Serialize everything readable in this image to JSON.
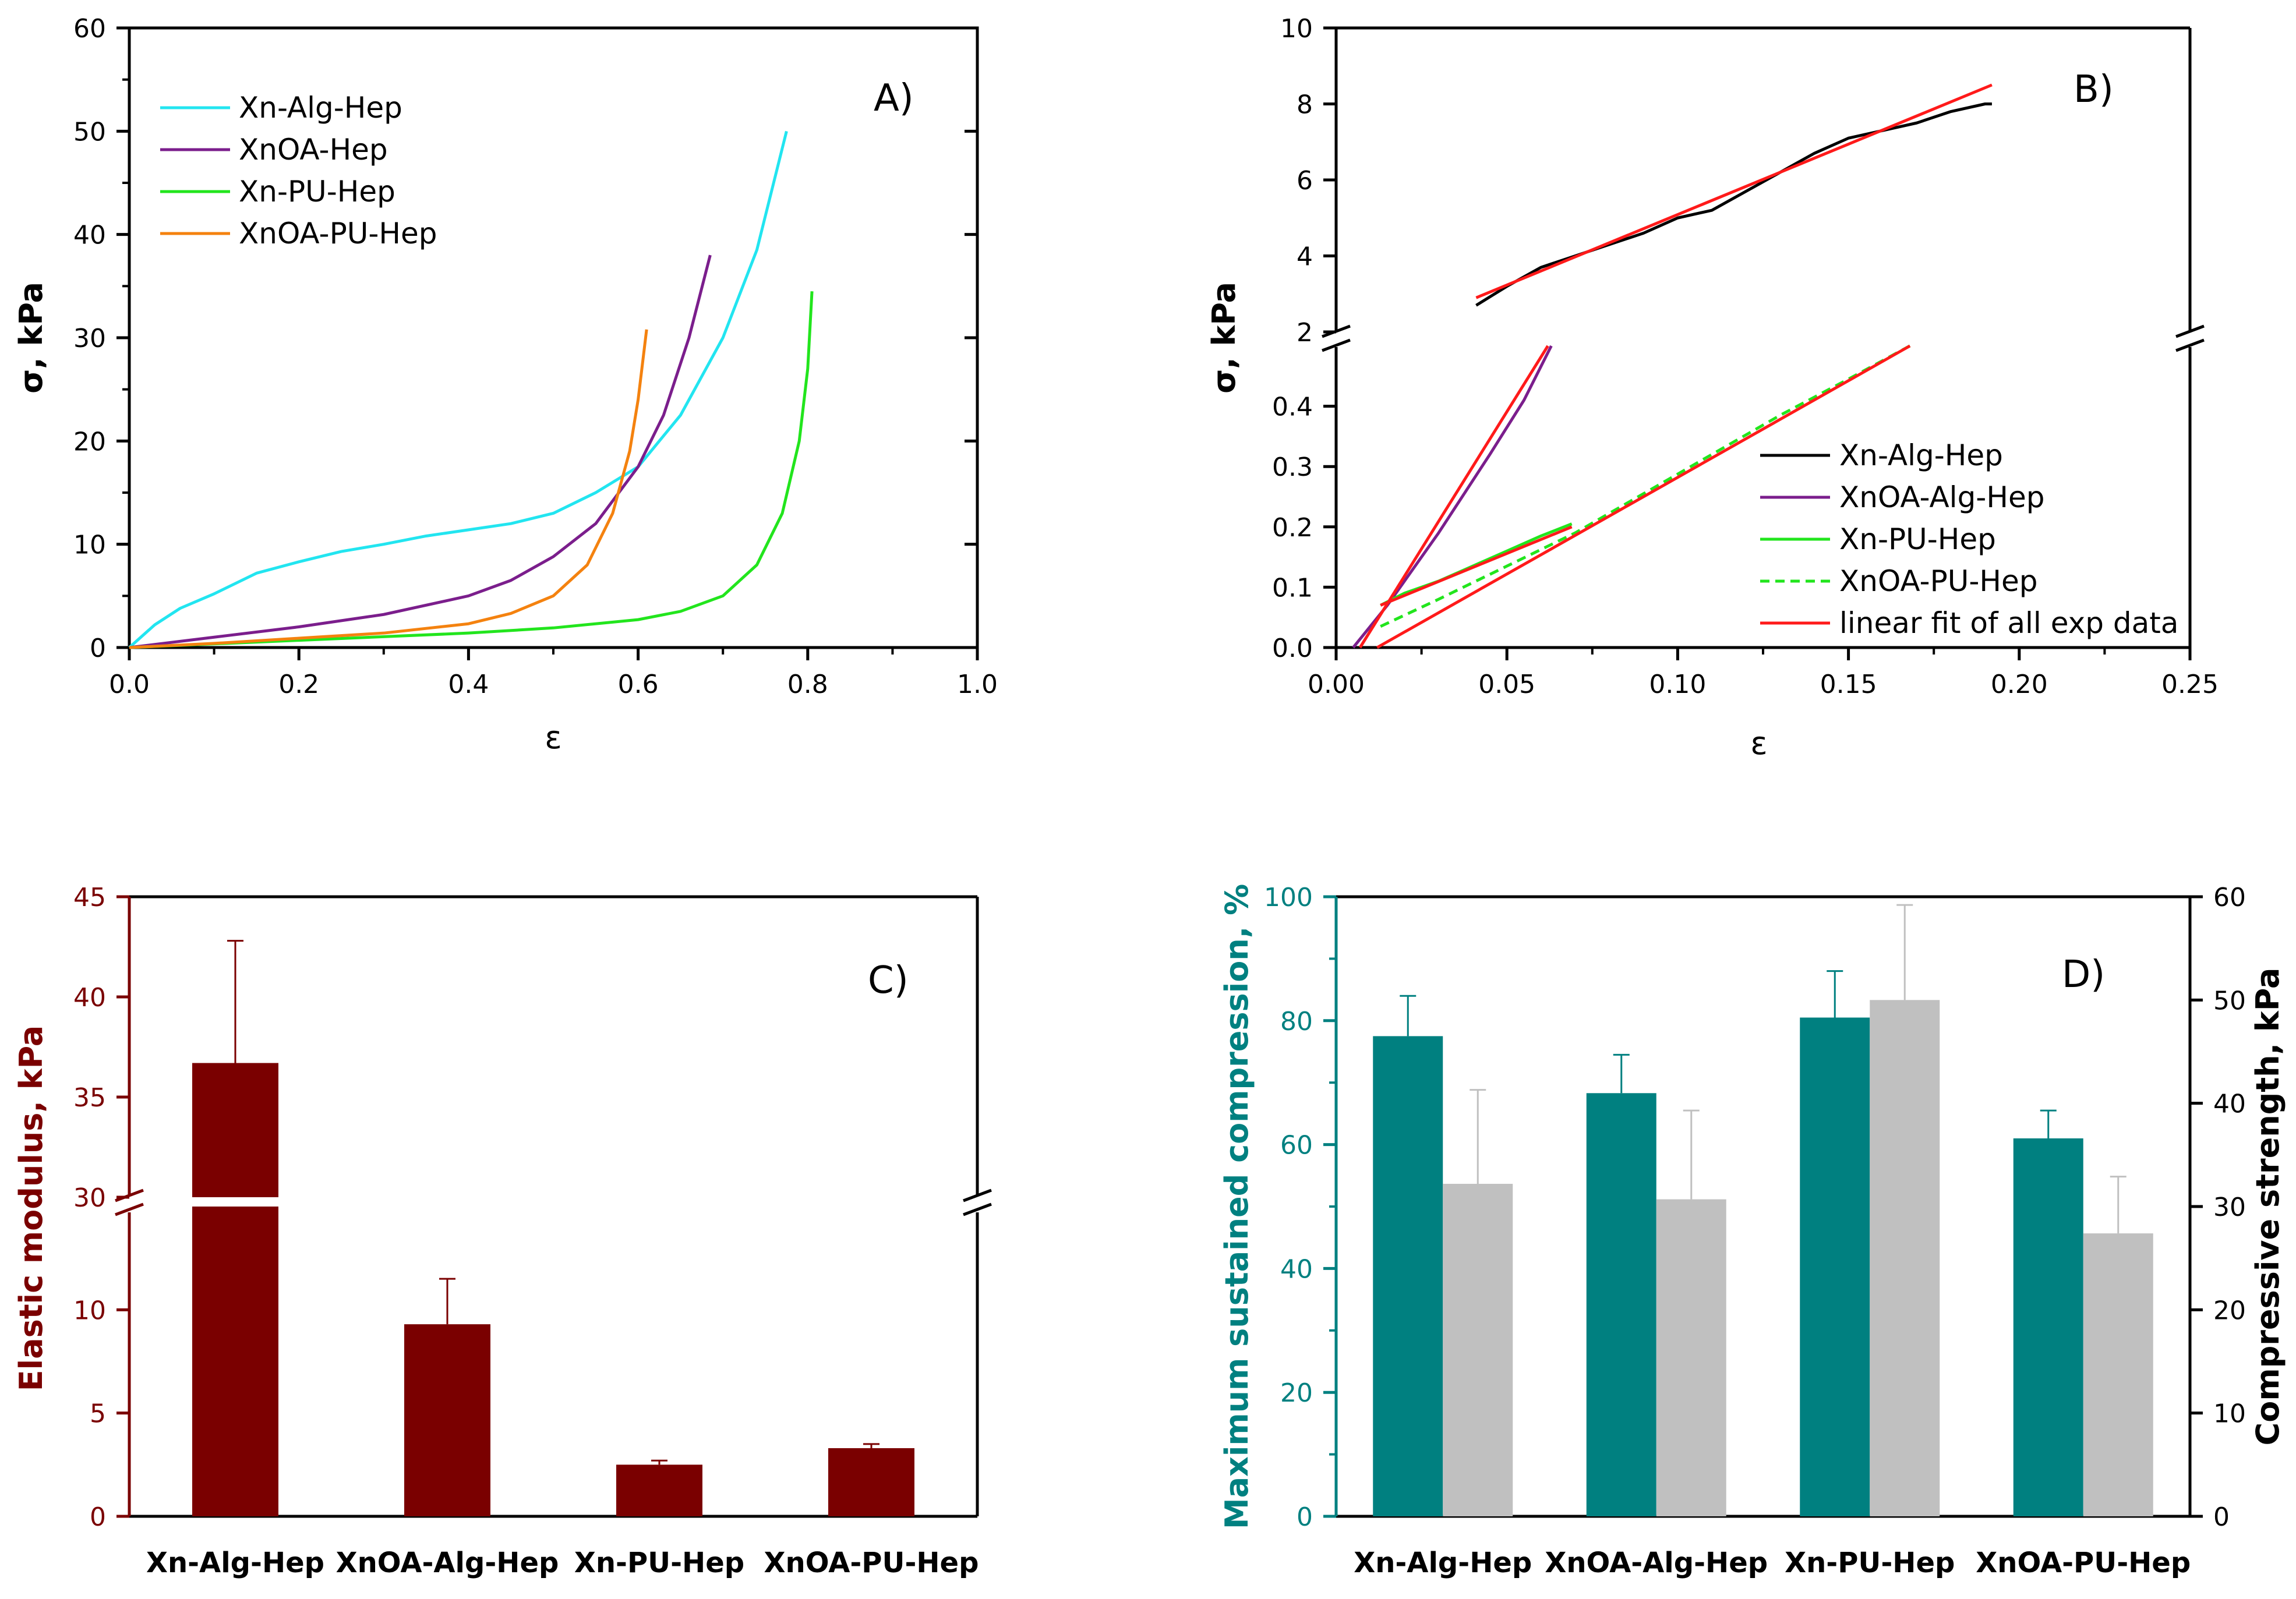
{
  "chart_data": [
    {
      "panel": "A)",
      "type": "line",
      "xlabel": "ε",
      "ylabel": "σ, kPa",
      "xlim": [
        0.0,
        1.0
      ],
      "ylim": [
        0,
        60
      ],
      "xticks": [
        "0.0",
        "0.2",
        "0.4",
        "0.6",
        "0.8",
        "1.0"
      ],
      "yticks": [
        "0",
        "10",
        "20",
        "30",
        "40",
        "50",
        "60"
      ],
      "legend_position": "top-left",
      "series": [
        {
          "name": "Xn-Alg-Hep",
          "color": "#22e5f0",
          "x": [
            0,
            0.03,
            0.06,
            0.1,
            0.15,
            0.2,
            0.25,
            0.3,
            0.35,
            0.4,
            0.45,
            0.5,
            0.55,
            0.6,
            0.65,
            0.7,
            0.74,
            0.775
          ],
          "y": [
            0,
            2.2,
            3.8,
            5.2,
            7.2,
            8.3,
            9.3,
            10.0,
            10.8,
            11.4,
            12.0,
            13.0,
            15.0,
            17.5,
            22.5,
            30.0,
            38.5,
            50.0
          ]
        },
        {
          "name": "XnOA-Hep",
          "color": "#7b1e8c",
          "x": [
            0,
            0.1,
            0.2,
            0.3,
            0.4,
            0.45,
            0.5,
            0.55,
            0.6,
            0.63,
            0.66,
            0.685
          ],
          "y": [
            0,
            1.0,
            2.0,
            3.2,
            5.0,
            6.5,
            8.8,
            12.0,
            17.5,
            22.5,
            30.0,
            38.0
          ]
        },
        {
          "name": "Xn-PU-Hep",
          "color": "#22e51d",
          "x": [
            0,
            0.2,
            0.4,
            0.5,
            0.6,
            0.65,
            0.7,
            0.74,
            0.77,
            0.79,
            0.8,
            0.805
          ],
          "y": [
            0,
            0.7,
            1.4,
            1.9,
            2.7,
            3.5,
            5.0,
            8.0,
            13.0,
            20.0,
            27.0,
            34.5
          ]
        },
        {
          "name": "XnOA-PU-Hep",
          "color": "#f4820f",
          "x": [
            0,
            0.1,
            0.2,
            0.3,
            0.4,
            0.45,
            0.5,
            0.54,
            0.57,
            0.59,
            0.6,
            0.61
          ],
          "y": [
            0,
            0.4,
            0.9,
            1.4,
            2.3,
            3.3,
            5.0,
            8.0,
            13.0,
            19.0,
            24.0,
            30.8
          ]
        }
      ]
    },
    {
      "panel": "B)",
      "type": "line",
      "xlabel": "ε",
      "ylabel": "σ, kPa",
      "xlim": [
        0.0,
        0.25
      ],
      "y_broken_axis": true,
      "ylim_lower": [
        0.0,
        0.5
      ],
      "ylim_upper": [
        2,
        10
      ],
      "xticks": [
        "0.00",
        "0.05",
        "0.10",
        "0.15",
        "0.20",
        "0.25"
      ],
      "yticks_lower": [
        "0.0",
        "0.1",
        "0.2",
        "0.3",
        "0.4"
      ],
      "yticks_upper": [
        "2",
        "4",
        "6",
        "8",
        "10"
      ],
      "legend_position": "bottom-right",
      "series": [
        {
          "name": "Xn-Alg-Hep",
          "color": "#000000",
          "dash": false,
          "segment": "upper",
          "x": [
            0.041,
            0.05,
            0.06,
            0.07,
            0.08,
            0.09,
            0.1,
            0.11,
            0.12,
            0.13,
            0.14,
            0.15,
            0.16,
            0.17,
            0.18,
            0.19,
            0.192
          ],
          "y": [
            2.7,
            3.2,
            3.7,
            4.0,
            4.3,
            4.6,
            5.0,
            5.2,
            5.7,
            6.2,
            6.7,
            7.1,
            7.3,
            7.5,
            7.8,
            8.0,
            8.0
          ]
        },
        {
          "name": "XnOA-Alg-Hep",
          "color": "#7b1e8c",
          "dash": false,
          "segment": "lower",
          "x": [
            0.005,
            0.015,
            0.03,
            0.045,
            0.055,
            0.063
          ],
          "y": [
            0.0,
            0.07,
            0.19,
            0.32,
            0.41,
            0.5
          ]
        },
        {
          "name": "Xn-PU-Hep",
          "color": "#22e51d",
          "dash": false,
          "segment": "lower",
          "x": [
            0.013,
            0.02,
            0.03,
            0.04,
            0.05,
            0.06,
            0.069
          ],
          "y": [
            0.07,
            0.09,
            0.11,
            0.135,
            0.16,
            0.185,
            0.205
          ]
        },
        {
          "name": "XnOA-PU-Hep",
          "color": "#22e51d",
          "dash": true,
          "segment": "lower",
          "x": [
            0.013,
            0.03,
            0.05,
            0.07,
            0.09,
            0.11,
            0.13,
            0.15,
            0.168
          ],
          "y": [
            0.035,
            0.08,
            0.135,
            0.19,
            0.255,
            0.32,
            0.385,
            0.445,
            0.5
          ]
        },
        {
          "name": "linear fit of all exp data",
          "color": "#ff1a1a",
          "dash": false,
          "segment": "fits",
          "fits": [
            {
              "segment": "upper",
              "x": [
                0.041,
                0.192
              ],
              "y": [
                2.9,
                8.5
              ]
            },
            {
              "segment": "lower",
              "x": [
                0.007,
                0.062
              ],
              "y": [
                0.0,
                0.5
              ]
            },
            {
              "segment": "lower",
              "x": [
                0.013,
                0.069
              ],
              "y": [
                0.07,
                0.2
              ]
            },
            {
              "segment": "lower",
              "x": [
                0.012,
                0.168
              ],
              "y": [
                0.0,
                0.5
              ]
            }
          ]
        }
      ]
    },
    {
      "panel": "C)",
      "type": "bar",
      "ylabel": "Elastic modulus, kPa",
      "axis_color": "#7a0000",
      "bar_color": "#7a0000",
      "y_broken_axis": true,
      "ylim_lower": [
        0,
        15
      ],
      "ylim_upper": [
        30,
        45
      ],
      "yticks_lower": [
        "0",
        "5",
        "10"
      ],
      "yticks_upper": [
        "30",
        "35",
        "40",
        "45"
      ],
      "categories": [
        "Xn-Alg-Hep",
        "XnOA-Alg-Hep",
        "Xn-PU-Hep",
        "XnOA-PU-Hep"
      ],
      "values": [
        36.7,
        9.3,
        2.5,
        3.3
      ],
      "errors": [
        6.1,
        2.2,
        0.2,
        0.2
      ]
    },
    {
      "panel": "D)",
      "type": "bar",
      "ylabel_left": "Maximum sustained compression, %",
      "ylabel_right": "Compressive strength, kPa",
      "left_axis_color": "#008080",
      "ylim_left": [
        0,
        100
      ],
      "ylim_right": [
        0,
        60
      ],
      "yticks_left": [
        "0",
        "20",
        "40",
        "60",
        "80",
        "100"
      ],
      "yticks_right": [
        "0",
        "10",
        "20",
        "30",
        "40",
        "50",
        "60"
      ],
      "categories": [
        "Xn-Alg-Hep",
        "XnOA-Alg-Hep",
        "Xn-PU-Hep",
        "XnOA-PU-Hep"
      ],
      "series": [
        {
          "name": "Maximum sustained compression, %",
          "axis": "left",
          "color": "#008080",
          "values": [
            77.5,
            68.3,
            80.5,
            61.0
          ],
          "errors": [
            6.5,
            6.2,
            7.5,
            4.5
          ]
        },
        {
          "name": "Compressive strength, kPa",
          "axis": "right",
          "color": "#c0c0c0",
          "values": [
            32.2,
            30.7,
            50.0,
            27.4
          ],
          "errors": [
            9.1,
            8.6,
            9.2,
            5.5
          ]
        }
      ]
    }
  ]
}
